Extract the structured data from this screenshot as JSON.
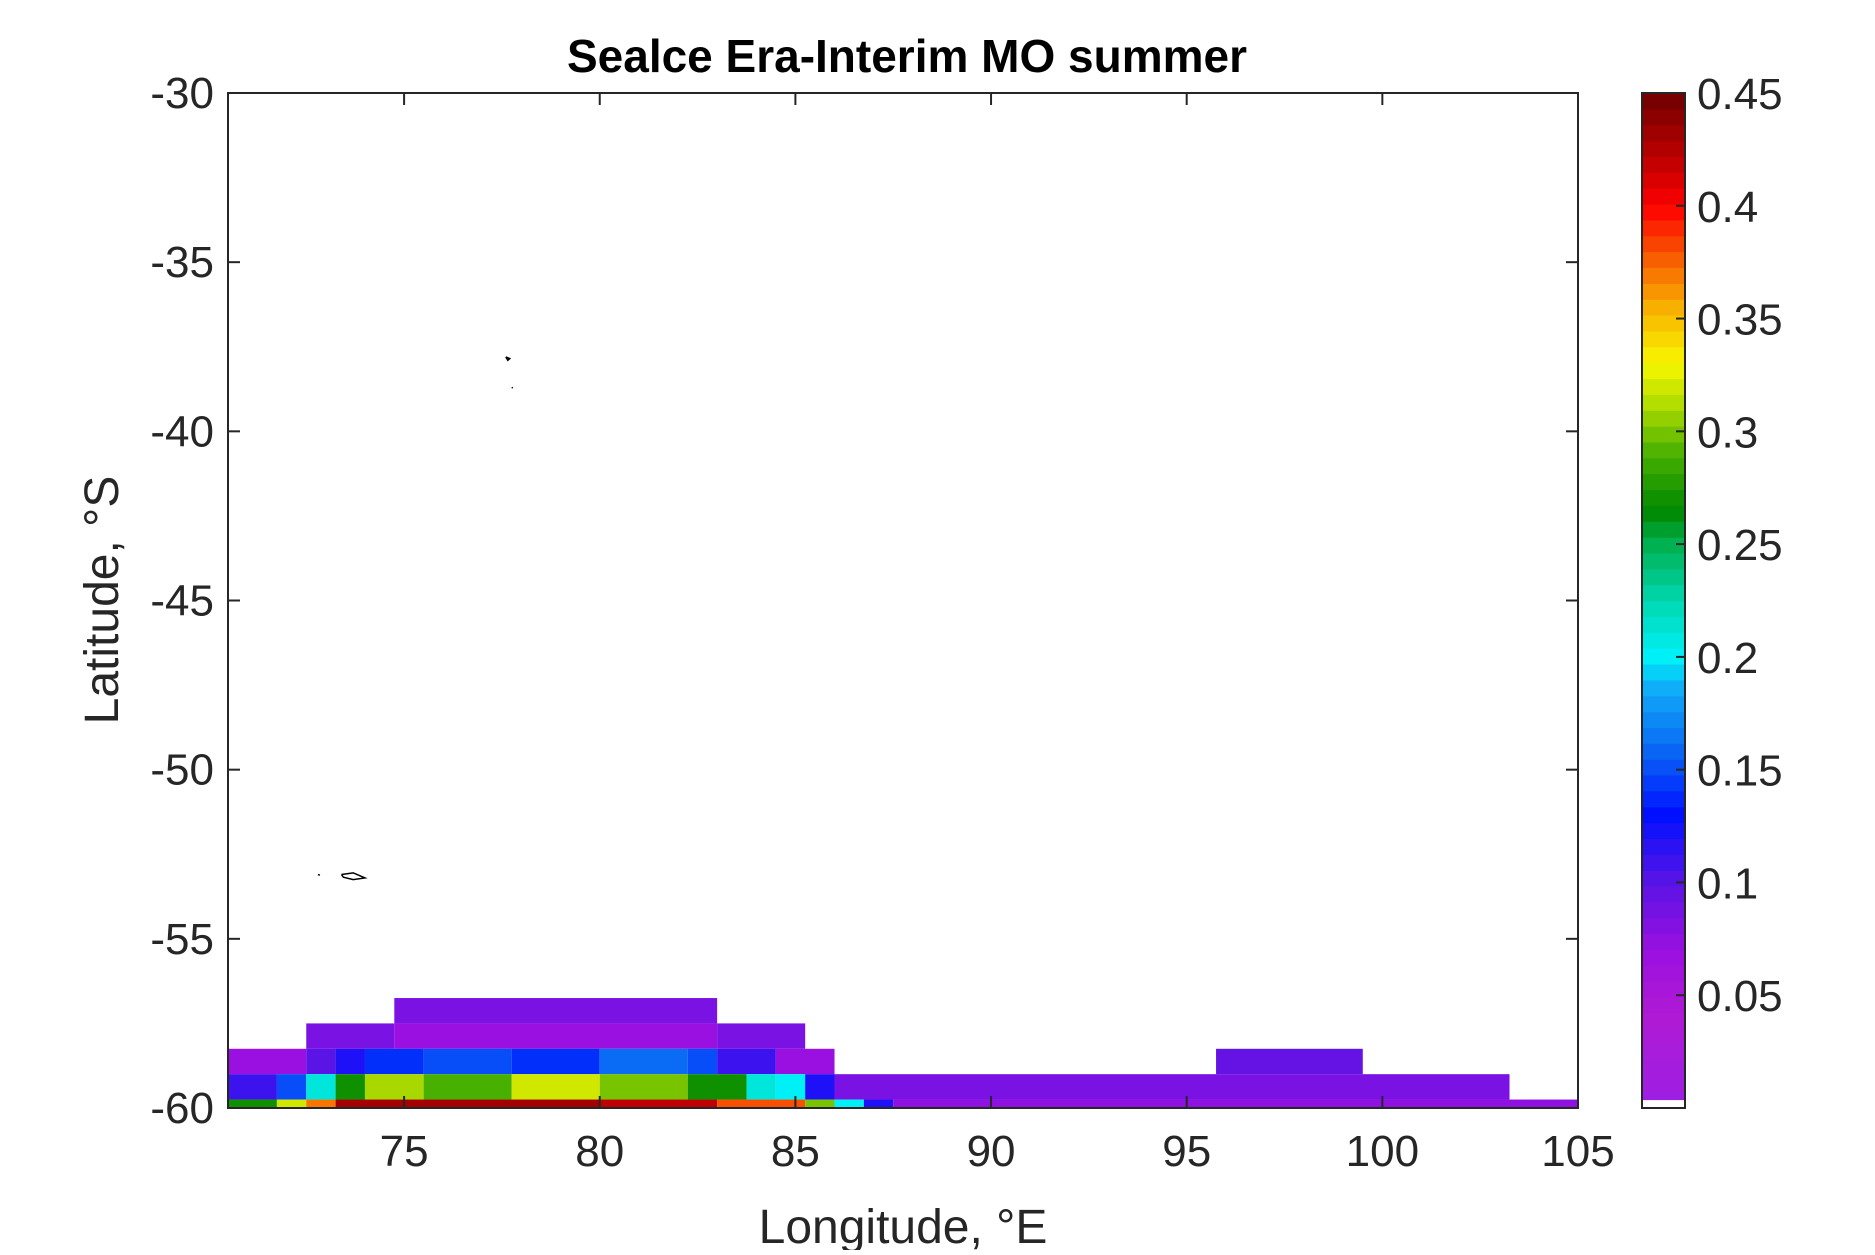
{
  "chart_data": {
    "type": "heatmap",
    "title": "Sealce Era-Interim MO summer",
    "xlabel": "Longitude, °E",
    "ylabel": "Latitude, °S",
    "xlim": [
      70.5,
      105
    ],
    "ylim": [
      -60,
      -30
    ],
    "xticks": [
      75,
      80,
      85,
      90,
      95,
      100,
      105
    ],
    "yticks": [
      -30,
      -35,
      -40,
      -45,
      -50,
      -55,
      -60
    ],
    "colorbar": {
      "range": [
        0,
        0.45
      ],
      "ticks": [
        0.05,
        0.1,
        0.15,
        0.2,
        0.25,
        0.3,
        0.35,
        0.4,
        0.45
      ],
      "tick_labels": [
        "0.05",
        "0.1",
        "0.15",
        "0.2",
        "0.25",
        "0.3",
        "0.35",
        "0.4",
        "0.45"
      ],
      "colormap_stops": [
        {
          "v": 0.0,
          "color": "#9b1fe6"
        },
        {
          "v": 0.04,
          "color": "#b01bd4"
        },
        {
          "v": 0.07,
          "color": "#9a10e0"
        },
        {
          "v": 0.1,
          "color": "#5a14e6"
        },
        {
          "v": 0.13,
          "color": "#0010ff"
        },
        {
          "v": 0.16,
          "color": "#0a6cf4"
        },
        {
          "v": 0.185,
          "color": "#10a8f8"
        },
        {
          "v": 0.2,
          "color": "#00f0f8"
        },
        {
          "v": 0.225,
          "color": "#00d8b0"
        },
        {
          "v": 0.25,
          "color": "#00b050"
        },
        {
          "v": 0.265,
          "color": "#008800"
        },
        {
          "v": 0.29,
          "color": "#48b000"
        },
        {
          "v": 0.31,
          "color": "#a8d800"
        },
        {
          "v": 0.33,
          "color": "#f8f800"
        },
        {
          "v": 0.355,
          "color": "#f8b000"
        },
        {
          "v": 0.38,
          "color": "#f85000"
        },
        {
          "v": 0.4,
          "color": "#ff0000"
        },
        {
          "v": 0.42,
          "color": "#c00000"
        },
        {
          "v": 0.45,
          "color": "#700000"
        }
      ]
    },
    "cells": [
      {
        "lat": [
          -57.5,
          -56.75
        ],
        "lon": [
          74.75,
          83.0
        ],
        "value": 0.085
      },
      {
        "lat": [
          -58.25,
          -57.5
        ],
        "lon": [
          72.5,
          74.75
        ],
        "value": 0.085
      },
      {
        "lat": [
          -58.25,
          -57.5
        ],
        "lon": [
          74.75,
          83.0
        ],
        "value": 0.07
      },
      {
        "lat": [
          -58.25,
          -57.5
        ],
        "lon": [
          83.0,
          85.25
        ],
        "value": 0.085
      },
      {
        "lat": [
          -59.0,
          -58.25
        ],
        "lon": [
          70.5,
          72.5
        ],
        "value": 0.07
      },
      {
        "lat": [
          -59.0,
          -58.25
        ],
        "lon": [
          72.5,
          73.25
        ],
        "value": 0.1
      },
      {
        "lat": [
          -59.0,
          -58.25
        ],
        "lon": [
          73.25,
          74.0
        ],
        "value": 0.12
      },
      {
        "lat": [
          -59.0,
          -58.25
        ],
        "lon": [
          74.0,
          75.5
        ],
        "value": 0.14
      },
      {
        "lat": [
          -59.0,
          -58.25
        ],
        "lon": [
          75.5,
          77.75
        ],
        "value": 0.15
      },
      {
        "lat": [
          -59.0,
          -58.25
        ],
        "lon": [
          77.75,
          80.0
        ],
        "value": 0.14
      },
      {
        "lat": [
          -59.0,
          -58.25
        ],
        "lon": [
          80.0,
          82.25
        ],
        "value": 0.16
      },
      {
        "lat": [
          -59.0,
          -58.25
        ],
        "lon": [
          82.25,
          83.0
        ],
        "value": 0.15
      },
      {
        "lat": [
          -59.0,
          -58.25
        ],
        "lon": [
          83.0,
          84.5
        ],
        "value": 0.11
      },
      {
        "lat": [
          -59.0,
          -58.25
        ],
        "lon": [
          84.5,
          86.0
        ],
        "value": 0.07
      },
      {
        "lat": [
          -59.0,
          -58.25
        ],
        "lon": [
          95.75,
          99.5
        ],
        "value": 0.095
      },
      {
        "lat": [
          -59.75,
          -59.0
        ],
        "lon": [
          70.5,
          71.75
        ],
        "value": 0.11
      },
      {
        "lat": [
          -59.75,
          -59.0
        ],
        "lon": [
          71.75,
          72.5
        ],
        "value": 0.15
      },
      {
        "lat": [
          -59.75,
          -59.0
        ],
        "lon": [
          72.5,
          73.25
        ],
        "value": 0.21
      },
      {
        "lat": [
          -59.75,
          -59.0
        ],
        "lon": [
          73.25,
          74.0
        ],
        "value": 0.27
      },
      {
        "lat": [
          -59.75,
          -59.0
        ],
        "lon": [
          74.0,
          75.5
        ],
        "value": 0.31
      },
      {
        "lat": [
          -59.75,
          -59.0
        ],
        "lon": [
          75.5,
          77.75
        ],
        "value": 0.29
      },
      {
        "lat": [
          -59.75,
          -59.0
        ],
        "lon": [
          77.75,
          80.0
        ],
        "value": 0.32
      },
      {
        "lat": [
          -59.75,
          -59.0
        ],
        "lon": [
          80.0,
          82.25
        ],
        "value": 0.3
      },
      {
        "lat": [
          -59.75,
          -59.0
        ],
        "lon": [
          82.25,
          83.75
        ],
        "value": 0.27
      },
      {
        "lat": [
          -59.75,
          -59.0
        ],
        "lon": [
          83.75,
          84.5
        ],
        "value": 0.21
      },
      {
        "lat": [
          -59.75,
          -59.0
        ],
        "lon": [
          84.5,
          85.25
        ],
        "value": 0.2
      },
      {
        "lat": [
          -59.75,
          -59.0
        ],
        "lon": [
          85.25,
          86.0
        ],
        "value": 0.12
      },
      {
        "lat": [
          -59.75,
          -59.0
        ],
        "lon": [
          86.0,
          103.25
        ],
        "value": 0.085
      },
      {
        "lat": [
          -60.0,
          -59.75
        ],
        "lon": [
          70.5,
          71.75
        ],
        "value": 0.27
      },
      {
        "lat": [
          -60.0,
          -59.75
        ],
        "lon": [
          71.75,
          72.5
        ],
        "value": 0.32
      },
      {
        "lat": [
          -60.0,
          -59.75
        ],
        "lon": [
          72.5,
          73.25
        ],
        "value": 0.37
      },
      {
        "lat": [
          -60.0,
          -59.75
        ],
        "lon": [
          73.25,
          80.0
        ],
        "value": 0.43
      },
      {
        "lat": [
          -60.0,
          -59.75
        ],
        "lon": [
          80.0,
          83.0
        ],
        "value": 0.42
      },
      {
        "lat": [
          -60.0,
          -59.75
        ],
        "lon": [
          83.0,
          85.25
        ],
        "value": 0.38
      },
      {
        "lat": [
          -60.0,
          -59.75
        ],
        "lon": [
          85.25,
          86.0
        ],
        "value": 0.3
      },
      {
        "lat": [
          -60.0,
          -59.75
        ],
        "lon": [
          86.0,
          86.75
        ],
        "value": 0.2
      },
      {
        "lat": [
          -60.0,
          -59.75
        ],
        "lon": [
          86.75,
          87.5
        ],
        "value": 0.12
      },
      {
        "lat": [
          -60.0,
          -59.75
        ],
        "lon": [
          87.5,
          105.0
        ],
        "value": 0.075
      }
    ],
    "coastlines": [
      [
        [
          77.6,
          -37.8
        ],
        [
          77.7,
          -37.85
        ],
        [
          77.65,
          -37.9
        ],
        [
          77.6,
          -37.8
        ]
      ],
      [
        [
          77.75,
          -38.7
        ],
        [
          77.78,
          -38.72
        ]
      ],
      [
        [
          72.8,
          -53.1
        ],
        [
          72.85,
          -53.12
        ]
      ],
      [
        [
          73.4,
          -53.1
        ],
        [
          73.7,
          -53.05
        ],
        [
          74.0,
          -53.2
        ],
        [
          73.7,
          -53.25
        ],
        [
          73.45,
          -53.18
        ],
        [
          73.4,
          -53.1
        ]
      ]
    ]
  }
}
